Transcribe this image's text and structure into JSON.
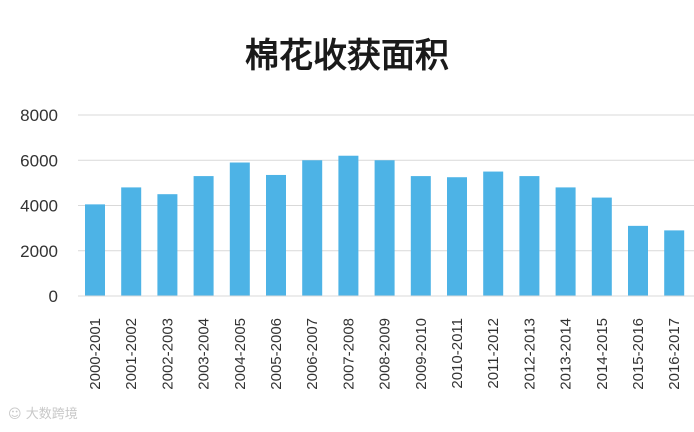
{
  "chart_data": {
    "type": "bar",
    "title": "棉花收获面积",
    "xlabel": "",
    "ylabel": "",
    "categories": [
      "2000-2001",
      "2001-2002",
      "2002-2003",
      "2003-2004",
      "2004-2005",
      "2005-2006",
      "2006-2007",
      "2007-2008",
      "2008-2009",
      "2009-2010",
      "2010-2011",
      "2011-2012",
      "2012-2013",
      "2013-2014",
      "2014-2015",
      "2015-2016",
      "2016-2017"
    ],
    "values": [
      4050,
      4800,
      4500,
      5300,
      5900,
      5350,
      6000,
      6200,
      6000,
      5300,
      5250,
      5500,
      5300,
      4800,
      4350,
      3100,
      2900
    ],
    "ylim": [
      0,
      8000
    ],
    "yticks": [
      0,
      2000,
      4000,
      6000,
      8000
    ],
    "grid": true,
    "legend": "none",
    "bar_color": "#4db3e6",
    "grid_color": "#d9d9d9"
  },
  "watermark": "大数跨境"
}
